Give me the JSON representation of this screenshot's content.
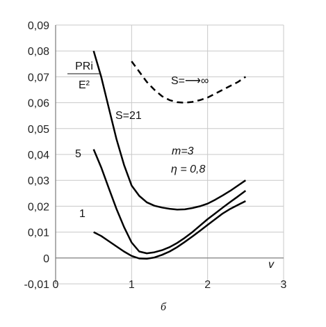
{
  "chart_data": {
    "type": "line",
    "xlim": [
      0,
      3
    ],
    "ylim": [
      -0.01,
      0.09
    ],
    "x_ticks": [
      "0",
      "1",
      "2",
      "3"
    ],
    "y_ticks": [
      "-0,01",
      "0",
      "0,01",
      "0,02",
      "0,03",
      "0,04",
      "0,05",
      "0,06",
      "0,07",
      "0,08",
      "0,09"
    ],
    "xlabel": "v",
    "ylabel_numerator": "PRi",
    "ylabel_denominator": "E²",
    "grid": true,
    "series": [
      {
        "name": "S=21",
        "style": "solid",
        "x": [
          0.5,
          0.6,
          0.7,
          0.8,
          0.9,
          1.0,
          1.1,
          1.2,
          1.3,
          1.4,
          1.5,
          1.6,
          1.7,
          1.8,
          1.9,
          2.0,
          2.1,
          2.2,
          2.3,
          2.4,
          2.5
        ],
        "y": [
          0.08,
          0.07,
          0.058,
          0.046,
          0.036,
          0.028,
          0.024,
          0.0215,
          0.0202,
          0.0195,
          0.019,
          0.0187,
          0.0188,
          0.0193,
          0.02,
          0.021,
          0.0225,
          0.0242,
          0.026,
          0.028,
          0.03
        ]
      },
      {
        "name": "5",
        "style": "solid",
        "x": [
          0.5,
          0.6,
          0.7,
          0.8,
          0.9,
          1.0,
          1.1,
          1.2,
          1.3,
          1.4,
          1.5,
          1.6,
          1.7,
          1.8,
          1.9,
          2.0,
          2.1,
          2.2,
          2.3,
          2.4,
          2.5
        ],
        "y": [
          0.042,
          0.035,
          0.027,
          0.019,
          0.012,
          0.006,
          0.0025,
          0.0018,
          0.0022,
          0.003,
          0.0042,
          0.0058,
          0.0078,
          0.01,
          0.0125,
          0.015,
          0.0172,
          0.0195,
          0.0217,
          0.0238,
          0.026
        ]
      },
      {
        "name": "1",
        "style": "solid",
        "x": [
          0.5,
          0.6,
          0.7,
          0.8,
          0.9,
          1.0,
          1.1,
          1.2,
          1.3,
          1.4,
          1.5,
          1.6,
          1.7,
          1.8,
          1.9,
          2.0,
          2.1,
          2.2,
          2.3,
          2.4,
          2.5
        ],
        "y": [
          0.01,
          0.0085,
          0.0065,
          0.0045,
          0.0025,
          0.0008,
          -0.0002,
          -0.0003,
          0.0002,
          0.0012,
          0.0025,
          0.0042,
          0.0062,
          0.0083,
          0.0105,
          0.0128,
          0.015,
          0.0172,
          0.019,
          0.0205,
          0.022
        ]
      },
      {
        "name": "S=⟶∞",
        "style": "dashed",
        "x": [
          1.0,
          1.1,
          1.2,
          1.3,
          1.4,
          1.5,
          1.6,
          1.7,
          1.8,
          1.9,
          2.0,
          2.1,
          2.2,
          2.3,
          2.4,
          2.5
        ],
        "y": [
          0.076,
          0.072,
          0.068,
          0.065,
          0.0625,
          0.061,
          0.0602,
          0.06,
          0.0603,
          0.061,
          0.062,
          0.0635,
          0.065,
          0.0665,
          0.068,
          0.07
        ]
      }
    ],
    "annotations": [
      {
        "text": "S=21",
        "italic": false
      },
      {
        "text": "5",
        "italic": false
      },
      {
        "text": "1",
        "italic": false
      },
      {
        "text": "S=⟶∞",
        "italic": false
      },
      {
        "text": "m=3",
        "italic": true
      },
      {
        "text": "η = 0,8",
        "italic": true
      }
    ],
    "caption": "б"
  }
}
